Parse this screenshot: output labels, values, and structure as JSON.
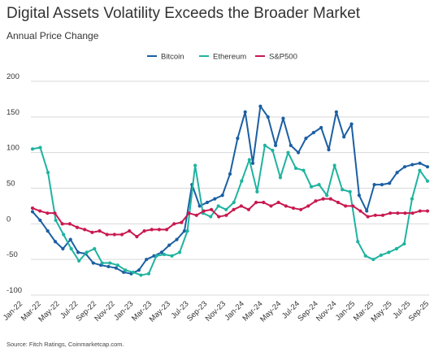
{
  "title": "Digital Assets Volatility Exceeds the Broader Market",
  "subtitle": "Annual Price Change",
  "source": "Source: Fitch Ratings, Coinmarketcap.com.",
  "chart_data": {
    "type": "line",
    "ylim": [
      -100,
      200
    ],
    "yticks": [
      -100,
      -50,
      0,
      50,
      100,
      150,
      200
    ],
    "grid": true,
    "legend_position": "top-right",
    "x_tick_labels": [
      "Jan-22",
      "Mar-22",
      "May-22",
      "Jul-22",
      "Sep-22",
      "Nov-22",
      "Jan-23",
      "Mar-23",
      "May-23",
      "Jul-23",
      "Sep-23",
      "Nov-23",
      "Jan-24",
      "Mar-24",
      "May-24",
      "Jul-24",
      "Sep-24",
      "Nov-24",
      "Jan-25",
      "Mar-25",
      "May-25",
      "Jul-25",
      "Sep-25"
    ],
    "series": [
      {
        "name": "Bitcoin",
        "color": "#1b5fa3",
        "values": [
          17,
          5,
          -10,
          -25,
          -35,
          -22,
          -40,
          -42,
          -55,
          -58,
          -60,
          -62,
          -68,
          -70,
          -65,
          -50,
          -45,
          -40,
          -30,
          -22,
          -10,
          55,
          25,
          30,
          35,
          40,
          70,
          120,
          157,
          85,
          165,
          150,
          110,
          148,
          110,
          100,
          120,
          128,
          135,
          104,
          157,
          122,
          140,
          40,
          18,
          55,
          55,
          57,
          72,
          80,
          83,
          85,
          80
        ]
      },
      {
        "name": "Ethereum",
        "color": "#1fb3a0",
        "values": [
          105,
          107,
          72,
          5,
          -15,
          -35,
          -52,
          -40,
          -35,
          -55,
          -55,
          -58,
          -65,
          -68,
          -72,
          -70,
          -45,
          -43,
          -45,
          -40,
          -10,
          82,
          15,
          10,
          25,
          20,
          30,
          60,
          90,
          45,
          110,
          103,
          65,
          100,
          78,
          75,
          52,
          55,
          40,
          82,
          48,
          45,
          -25,
          -45,
          -50,
          -44,
          -40,
          -35,
          -28,
          35,
          75,
          60
        ]
      },
      {
        "name": "S&P500",
        "color": "#c8194f",
        "values": [
          22,
          18,
          15,
          15,
          0,
          0,
          -5,
          -8,
          -12,
          -10,
          -15,
          -15,
          -15,
          -10,
          -18,
          -10,
          -8,
          -8,
          -8,
          0,
          2,
          15,
          12,
          18,
          20,
          10,
          12,
          20,
          25,
          20,
          30,
          30,
          25,
          30,
          25,
          22,
          20,
          25,
          32,
          35,
          35,
          30,
          25,
          25,
          18,
          10,
          12,
          12,
          15,
          15,
          15,
          15,
          18,
          18
        ]
      }
    ]
  }
}
